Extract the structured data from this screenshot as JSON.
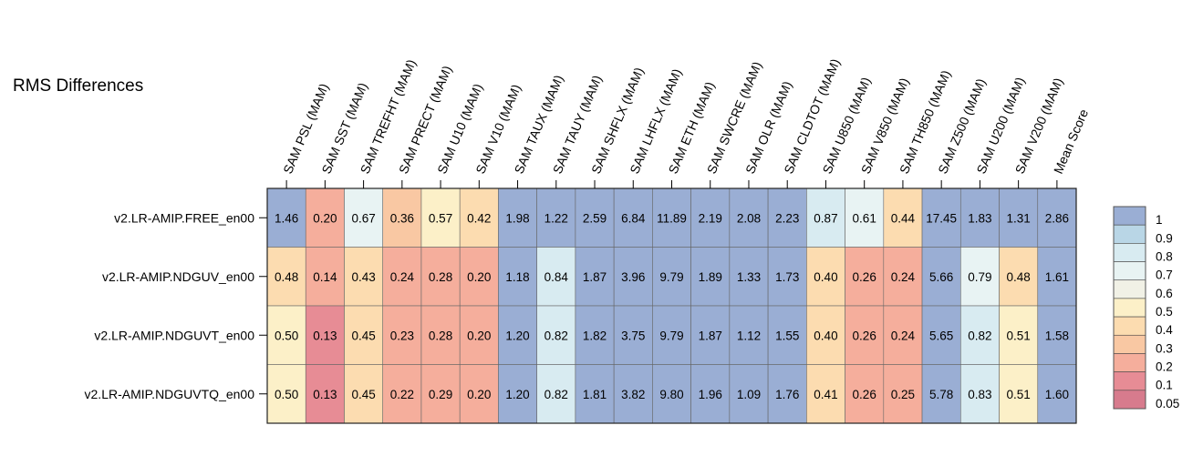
{
  "chart_data": {
    "type": "heatmap",
    "title": "RMS Differences",
    "columns": [
      "SAM PSL (MAM)",
      "SAM SST (MAM)",
      "SAM TREFHT (MAM)",
      "SAM PRECT (MAM)",
      "SAM U10 (MAM)",
      "SAM V10 (MAM)",
      "SAM TAUX (MAM)",
      "SAM TAUY (MAM)",
      "SAM SHFLX (MAM)",
      "SAM LHFLX (MAM)",
      "SAM ETH (MAM)",
      "SAM SWCRE (MAM)",
      "SAM OLR (MAM)",
      "SAM CLDTOT (MAM)",
      "SAM U850 (MAM)",
      "SAM V850 (MAM)",
      "SAM TH850 (MAM)",
      "SAM Z500 (MAM)",
      "SAM U200 (MAM)",
      "SAM V200 (MAM)",
      "Mean Score"
    ],
    "rows": [
      {
        "name": "v2.LR-AMIP.FREE_en00",
        "labels": [
          "1.46",
          "0.20",
          "0.67",
          "0.36",
          "0.57",
          "0.42",
          "1.98",
          "1.22",
          "2.59",
          "6.84",
          "11.89",
          "2.19",
          "2.08",
          "2.23",
          "0.87",
          "0.61",
          "0.44",
          "17.45",
          "1.83",
          "1.31",
          "2.86"
        ],
        "scores": [
          1.05,
          0.25,
          0.75,
          0.35,
          0.55,
          0.45,
          1.05,
          1.05,
          1.05,
          1.05,
          1.05,
          1.05,
          1.05,
          1.05,
          0.85,
          0.75,
          0.45,
          1.05,
          1.05,
          1.05,
          1.05
        ]
      },
      {
        "name": "v2.LR-AMIP.NDGUV_en00",
        "labels": [
          "0.48",
          "0.14",
          "0.43",
          "0.24",
          "0.28",
          "0.20",
          "1.18",
          "0.84",
          "1.87",
          "3.96",
          "9.79",
          "1.89",
          "1.33",
          "1.73",
          "0.40",
          "0.26",
          "0.24",
          "5.66",
          "0.79",
          "0.48",
          "1.61"
        ],
        "scores": [
          0.45,
          0.25,
          0.45,
          0.25,
          0.25,
          0.25,
          1.05,
          0.85,
          1.05,
          1.05,
          1.05,
          1.05,
          1.05,
          1.05,
          0.45,
          0.25,
          0.25,
          1.05,
          0.75,
          0.45,
          1.05
        ]
      },
      {
        "name": "v2.LR-AMIP.NDGUVT_en00",
        "labels": [
          "0.50",
          "0.13",
          "0.45",
          "0.23",
          "0.28",
          "0.20",
          "1.20",
          "0.82",
          "1.82",
          "3.75",
          "9.79",
          "1.87",
          "1.12",
          "1.55",
          "0.40",
          "0.26",
          "0.24",
          "5.65",
          "0.82",
          "0.51",
          "1.58"
        ],
        "scores": [
          0.55,
          0.15,
          0.45,
          0.25,
          0.25,
          0.25,
          1.05,
          0.85,
          1.05,
          1.05,
          1.05,
          1.05,
          1.05,
          1.05,
          0.45,
          0.25,
          0.25,
          1.05,
          0.85,
          0.55,
          1.05
        ]
      },
      {
        "name": "v2.LR-AMIP.NDGUVTQ_en00",
        "labels": [
          "0.50",
          "0.13",
          "0.45",
          "0.22",
          "0.29",
          "0.20",
          "1.20",
          "0.82",
          "1.81",
          "3.82",
          "9.80",
          "1.96",
          "1.09",
          "1.76",
          "0.41",
          "0.26",
          "0.25",
          "5.78",
          "0.83",
          "0.51",
          "1.60"
        ],
        "scores": [
          0.55,
          0.15,
          0.45,
          0.25,
          0.25,
          0.25,
          1.05,
          0.85,
          1.05,
          1.05,
          1.05,
          1.05,
          1.05,
          1.05,
          0.45,
          0.25,
          0.25,
          1.05,
          0.85,
          0.55,
          1.05
        ]
      }
    ],
    "colorbar": {
      "labels": [
        "1",
        "0.9",
        "0.8",
        "0.7",
        "0.6",
        "0.5",
        "0.4",
        "0.3",
        "0.2",
        "0.1",
        "0.05"
      ],
      "colors": [
        "#9aaed4",
        "#b9d6e6",
        "#d8ebf1",
        "#e8f3f3",
        "#f1f1e6",
        "#fcf0c8",
        "#fcdcb0",
        "#f9c8a3",
        "#f5ae9c",
        "#e78c95",
        "#d77b8d"
      ],
      "blocks": [
        {
          "upper": 1.1,
          "color": "#9aaed4"
        },
        {
          "upper": 1.0,
          "color": "#b9d6e6"
        },
        {
          "upper": 0.9,
          "color": "#d8ebf1"
        },
        {
          "upper": 0.8,
          "color": "#e8f3f3"
        },
        {
          "upper": 0.7,
          "color": "#f1f1e6"
        },
        {
          "upper": 0.6,
          "color": "#fcf0c8"
        },
        {
          "upper": 0.5,
          "color": "#fcdcb0"
        },
        {
          "upper": 0.4,
          "color": "#f9c8a3"
        },
        {
          "upper": 0.3,
          "color": "#f5ae9c"
        },
        {
          "upper": 0.2,
          "color": "#e78c95"
        },
        {
          "upper": 0.1,
          "color": "#d77b8d"
        }
      ]
    },
    "border_color": "#666666",
    "grid": false
  }
}
